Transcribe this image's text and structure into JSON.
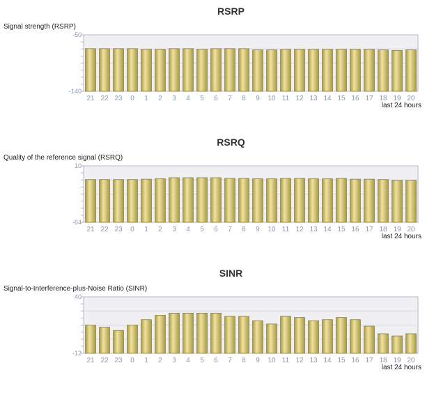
{
  "chart_data": [
    {
      "type": "bar",
      "title": "RSRP",
      "ylabel": "Signal strength (RSRP)",
      "xlabel": "last 24 hours",
      "categories": [
        "21",
        "22",
        "23",
        "0",
        "1",
        "2",
        "3",
        "4",
        "5",
        "6",
        "7",
        "8",
        "9",
        "10",
        "11",
        "12",
        "13",
        "14",
        "15",
        "16",
        "17",
        "18",
        "19",
        "20"
      ],
      "values": [
        -72,
        -72,
        -72,
        -72,
        -73,
        -73,
        -72,
        -72,
        -73,
        -72,
        -72,
        -72,
        -74,
        -74,
        -73,
        -73,
        -73,
        -73,
        -73,
        -73,
        -73,
        -74,
        -75,
        -74
      ],
      "ylim": [
        -140,
        -50
      ],
      "yticks": [
        "-50",
        "-140"
      ],
      "grid": true,
      "colors": {
        "bar_light": "#f0e29c",
        "bar_dark": "#a89a48",
        "bar_edge": "#8a7e3c",
        "plot_bg": "#f0f0f2",
        "grid": "#d4d4da",
        "axis": "#b4b8c8"
      }
    },
    {
      "type": "bar",
      "title": "RSRQ",
      "ylabel": "Quality of the reference signal (RSRQ)",
      "xlabel": "last 24 hours",
      "categories": [
        "21",
        "22",
        "23",
        "0",
        "1",
        "2",
        "3",
        "4",
        "5",
        "6",
        "7",
        "8",
        "9",
        "10",
        "11",
        "12",
        "13",
        "14",
        "15",
        "16",
        "17",
        "18",
        "19",
        "20"
      ],
      "values": [
        -8,
        -8,
        -8,
        -8,
        -7.5,
        -7,
        -5.5,
        -5.5,
        -5.5,
        -5.5,
        -6.5,
        -6.5,
        -7,
        -7,
        -6.5,
        -6.5,
        -7,
        -7,
        -6.5,
        -7.5,
        -7.5,
        -8,
        -9,
        -9
      ],
      "ylim": [
        -64,
        10
      ],
      "yticks": [
        "10",
        "-64"
      ],
      "grid": true,
      "colors": {
        "bar_light": "#f0e29c",
        "bar_dark": "#a89a48",
        "bar_edge": "#8a7e3c",
        "plot_bg": "#f0f0f2",
        "grid": "#d4d4da",
        "axis": "#b4b8c8"
      }
    },
    {
      "type": "bar",
      "title": "SINR",
      "ylabel": "Signal-to-Interference-plus-Noise Ratio (SINR)",
      "xlabel": "last 24 hours",
      "categories": [
        "21",
        "22",
        "23",
        "0",
        "1",
        "2",
        "3",
        "4",
        "5",
        "6",
        "7",
        "8",
        "9",
        "10",
        "11",
        "12",
        "13",
        "14",
        "15",
        "16",
        "17",
        "18",
        "19",
        "20"
      ],
      "values": [
        14,
        12,
        9,
        14,
        19,
        23,
        25,
        25,
        25,
        25,
        22,
        22,
        18,
        15,
        22,
        21,
        18,
        19,
        21,
        19,
        13,
        6,
        4,
        6
      ],
      "ylim": [
        -12,
        40
      ],
      "yticks": [
        "40",
        "-12"
      ],
      "grid": true,
      "colors": {
        "bar_light": "#f0e29c",
        "bar_dark": "#a89a48",
        "bar_edge": "#8a7e3c",
        "plot_bg": "#f0f0f2",
        "grid": "#d4d4da",
        "axis": "#b4b8c8"
      }
    }
  ]
}
